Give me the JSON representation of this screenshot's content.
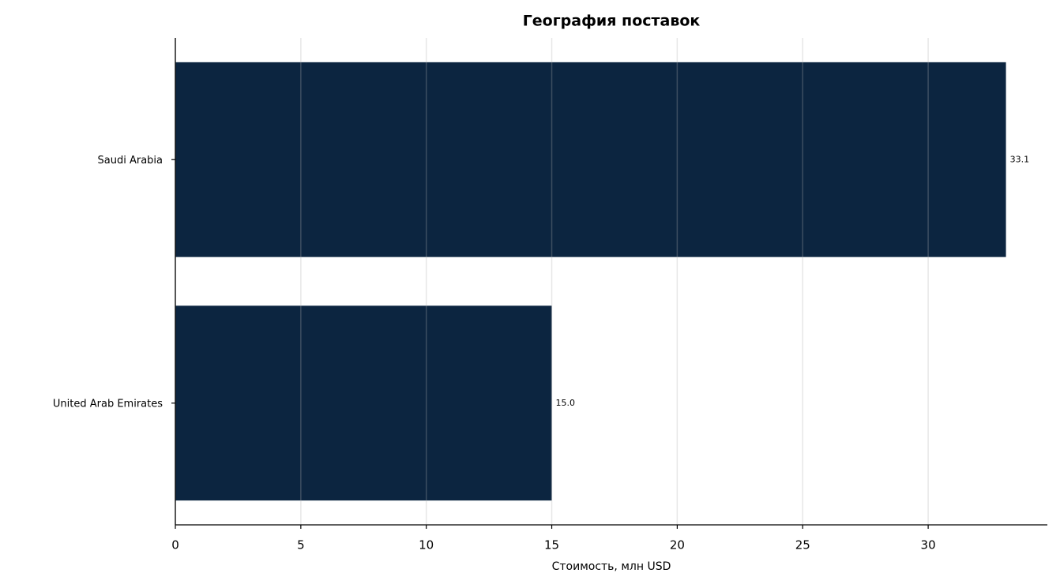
{
  "chart_data": {
    "type": "hbar",
    "title": "География поставок",
    "x_label": "Стоимость, млн USD",
    "categories": [
      "Saudi Arabia",
      "United Arab Emirates"
    ],
    "values": [
      33.1,
      15.0
    ],
    "value_labels": [
      "33.1",
      "15.0"
    ],
    "color": "#0c2540",
    "xlim": [
      0,
      34.75
    ],
    "xticks": [
      0,
      5,
      10,
      15,
      20,
      25,
      30
    ],
    "grid": true
  }
}
